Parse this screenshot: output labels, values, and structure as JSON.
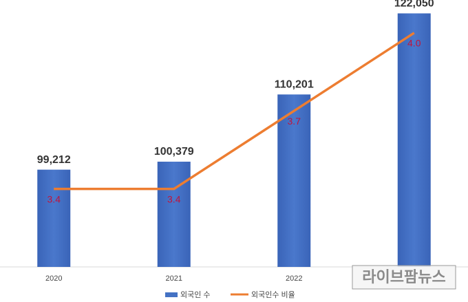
{
  "chart_data": {
    "type": "bar-line",
    "categories": [
      "2020",
      "2021",
      "2022",
      null
    ],
    "series": [
      {
        "name": "외국인 수",
        "type": "bar",
        "color": "#4472c4",
        "values": [
          99212,
          100379,
          110201,
          122050
        ],
        "value_labels": [
          "99,212",
          "100,379",
          "110,201",
          "122,050"
        ]
      },
      {
        "name": "외국인수 비율",
        "type": "line",
        "axis": "y2",
        "color": "#ed7d31",
        "label_color": "#c0143c",
        "values": [
          3.4,
          3.4,
          3.7,
          4.0
        ],
        "value_labels": [
          "3.4",
          "3.4",
          "3.7",
          "4.0"
        ]
      }
    ],
    "ylim": [
      85000,
      123000
    ],
    "y2lim": [
      3.1,
      4.1
    ],
    "legend": "bottom"
  },
  "watermark": "라이브팜뉴스"
}
